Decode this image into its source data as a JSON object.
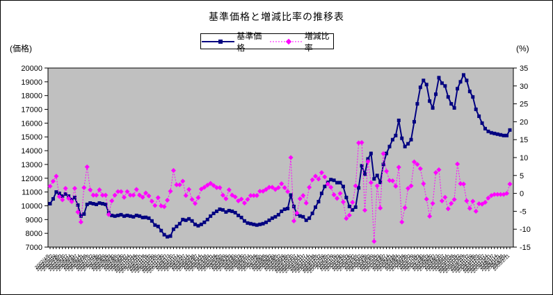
{
  "title": "基準価格と増減比率の推移表",
  "chart_data": {
    "type": "line",
    "title": "基準価格と増減比率の推移表",
    "plot_bg": "#C0C0C0",
    "legend_position": "top",
    "left_axis": {
      "label": "(価格)",
      "min": 7000,
      "max": 20000,
      "step": 1000
    },
    "right_axis": {
      "label": "(%)",
      "min": -15,
      "max": 35,
      "step": 5
    },
    "categories": [
      "2002/4/5",
      "2002/4/12",
      "2002/4/19",
      "2002/4/26",
      "2002/5/3",
      "2002/5/10",
      "2002/5/17",
      "2002/5/24",
      "2002/5/31",
      "2002/6/7",
      "2002/6/14",
      "2002/6/21",
      "2002/6/28",
      "2002/7/5",
      "2002/7/12",
      "2002/7/19",
      "2002/7/26",
      "2002/8/2",
      "2002/8/9",
      "2002/8/16",
      "2002/8/23",
      "2002/8/30",
      "2002/9/6",
      "2002/9/13",
      "2002/9/20",
      "2002/9/27",
      "2002/10/4",
      "2002/10/11",
      "2002/10/18",
      "2002/10/25",
      "2002/11/1",
      "2002/11/8",
      "2002/11/15",
      "2002/11/22",
      "2002/11/29",
      "2002/12/6",
      "2002/12/13",
      "2002/12/20",
      "2002/12/27",
      "2003/1/3",
      "2003/1/10",
      "2003/1/17",
      "2003/1/24",
      "2003/1/31",
      "2003/2/7",
      "2003/2/14",
      "2003/2/21",
      "2003/2/28",
      "2003/3/7",
      "2003/3/14",
      "2003/3/21",
      "2003/3/28",
      "2003/4/4",
      "2003/4/11",
      "2003/4/18",
      "2003/4/25",
      "2003/5/2",
      "2003/5/9",
      "2003/5/16",
      "2003/5/23",
      "2003/5/30",
      "2003/6/6",
      "2003/6/13",
      "2003/6/20",
      "2003/6/27",
      "2003/7/4",
      "2003/7/11",
      "2003/7/18",
      "2003/7/25",
      "2003/8/1",
      "2003/8/8",
      "2003/8/15",
      "2003/8/22",
      "2003/8/29",
      "2003/9/5",
      "2003/9/12",
      "2003/9/19",
      "2003/9/26",
      "2003/10/3",
      "2003/10/10",
      "2003/10/17",
      "2003/10/24",
      "2003/10/31",
      "2003/11/7",
      "2003/11/14",
      "2003/11/21",
      "2003/11/28",
      "2003/12/5",
      "2003/12/12",
      "2003/12/19",
      "2003/12/26",
      "2004/1/2",
      "2004/1/9",
      "2004/1/16",
      "2004/1/23",
      "2004/1/30",
      "2004/2/6",
      "2004/2/13",
      "2004/2/20",
      "2004/2/27",
      "2004/3/5",
      "2004/3/12",
      "2004/3/19",
      "2004/3/26",
      "2004/4/2",
      "2004/4/9",
      "2004/4/16",
      "2004/4/23",
      "2004/4/30",
      "2004/5/7",
      "2004/5/14",
      "2004/5/21",
      "2004/5/28",
      "2004/6/4",
      "2004/6/11",
      "2004/6/18",
      "2004/6/25",
      "2004/7/2",
      "2004/7/9",
      "2004/7/16",
      "2004/7/23",
      "2004/7/30",
      "2004/8/6",
      "2004/8/13",
      "2004/8/20",
      "2004/8/27",
      "2004/9/3",
      "2004/9/10",
      "2004/9/17",
      "2004/9/24",
      "2004/10/1",
      "2004/10/8",
      "2004/10/15",
      "2004/10/22",
      "2004/10/29",
      "2004/11/5",
      "2004/11/12",
      "2004/11/19",
      "2004/11/26",
      "2004/12/3",
      "2004/12/10",
      "2004/12/17",
      "2004/12/24",
      "2004/12/31",
      "2005/1/7",
      "2005/1/14",
      "2005/1/21",
      "2005/1/28",
      "2005/2/4",
      "2005/2/11"
    ],
    "series": [
      {
        "name": "基準価格",
        "axis": "left",
        "color": "#000080",
        "marker": "square",
        "line": "solid",
        "values": [
          10150,
          10500,
          11000,
          10900,
          10700,
          10850,
          10700,
          10450,
          10600,
          10050,
          9250,
          9400,
          10100,
          10200,
          10150,
          10100,
          10200,
          10150,
          10100,
          9500,
          9300,
          9250,
          9300,
          9350,
          9250,
          9300,
          9250,
          9200,
          9300,
          9250,
          9150,
          9160,
          9100,
          8900,
          8600,
          8500,
          8200,
          7900,
          7750,
          7800,
          8300,
          8500,
          8700,
          9000,
          8950,
          9050,
          8900,
          8650,
          8550,
          8650,
          8800,
          9000,
          9250,
          9450,
          9600,
          9750,
          9700,
          9550,
          9650,
          9600,
          9500,
          9300,
          9150,
          8900,
          8750,
          8700,
          8650,
          8600,
          8650,
          8700,
          8800,
          8950,
          9100,
          9200,
          9350,
          9600,
          9750,
          9800,
          10780,
          9950,
          9400,
          9260,
          9200,
          8950,
          9100,
          9450,
          9900,
          10300,
          10900,
          11400,
          11700,
          11900,
          11850,
          11680,
          11680,
          11400,
          10600,
          9950,
          9700,
          9900,
          11300,
          12900,
          12300,
          13400,
          13800,
          11950,
          12200,
          11700,
          13000,
          13800,
          14300,
          14800,
          15100,
          16200,
          14900,
          14300,
          14500,
          14800,
          16100,
          17400,
          18600,
          19100,
          18800,
          17600,
          17100,
          18100,
          19300,
          18900,
          18700,
          17900,
          17400,
          17100,
          18500,
          19000,
          19500,
          19100,
          18300,
          17900,
          17000,
          16500,
          16000,
          15600,
          15400,
          15300,
          15250,
          15200,
          15150,
          15100,
          15100,
          15500
        ]
      },
      {
        "name": "増減比率",
        "axis": "right",
        "color": "#FF00FF",
        "marker": "diamond",
        "line": "dashed",
        "values": [
          2.0,
          3.4,
          4.8,
          -0.9,
          -1.8,
          1.4,
          -1.4,
          -2.3,
          1.4,
          -5.2,
          -8.0,
          1.6,
          7.4,
          1.0,
          -0.5,
          -0.5,
          1.0,
          -0.5,
          -0.5,
          -5.9,
          -2.1,
          -0.5,
          0.5,
          0.5,
          -1.1,
          0.5,
          -0.5,
          -0.5,
          1.1,
          -0.5,
          -1.1,
          0.1,
          -0.7,
          -2.2,
          -3.4,
          -1.2,
          -3.5,
          -3.7,
          -1.9,
          0.6,
          6.4,
          2.4,
          2.4,
          3.4,
          -0.6,
          1.1,
          -1.7,
          -2.8,
          -1.2,
          1.2,
          1.7,
          2.3,
          2.8,
          2.2,
          1.6,
          1.6,
          -0.5,
          -1.5,
          1.0,
          -0.5,
          -1.0,
          -2.1,
          -1.6,
          -2.7,
          -1.7,
          -0.6,
          -0.6,
          -0.6,
          0.6,
          0.6,
          1.1,
          1.7,
          1.7,
          1.1,
          1.6,
          2.7,
          1.6,
          0.5,
          10.0,
          -7.7,
          -5.5,
          -1.5,
          -0.6,
          -2.7,
          1.7,
          3.8,
          4.8,
          4.0,
          5.8,
          4.6,
          2.6,
          1.7,
          -0.4,
          -1.4,
          0.0,
          -2.4,
          -7.0,
          -6.1,
          -2.5,
          2.1,
          14.1,
          14.2,
          -4.7,
          8.9,
          3.0,
          -13.4,
          2.1,
          -4.1,
          11.1,
          6.2,
          3.6,
          3.5,
          2.0,
          7.3,
          -8.0,
          -4.0,
          1.4,
          2.1,
          8.8,
          8.1,
          6.9,
          2.7,
          -1.6,
          -6.4,
          -2.8,
          5.8,
          6.6,
          -2.1,
          -1.1,
          -4.3,
          -2.8,
          -1.7,
          8.2,
          2.7,
          2.6,
          -2.1,
          -4.2,
          -2.2,
          -5.0,
          -2.9,
          -3.0,
          -2.5,
          -1.3,
          -0.6,
          -0.3,
          -0.3,
          -0.3,
          -0.3,
          0.0,
          2.6
        ]
      }
    ]
  }
}
